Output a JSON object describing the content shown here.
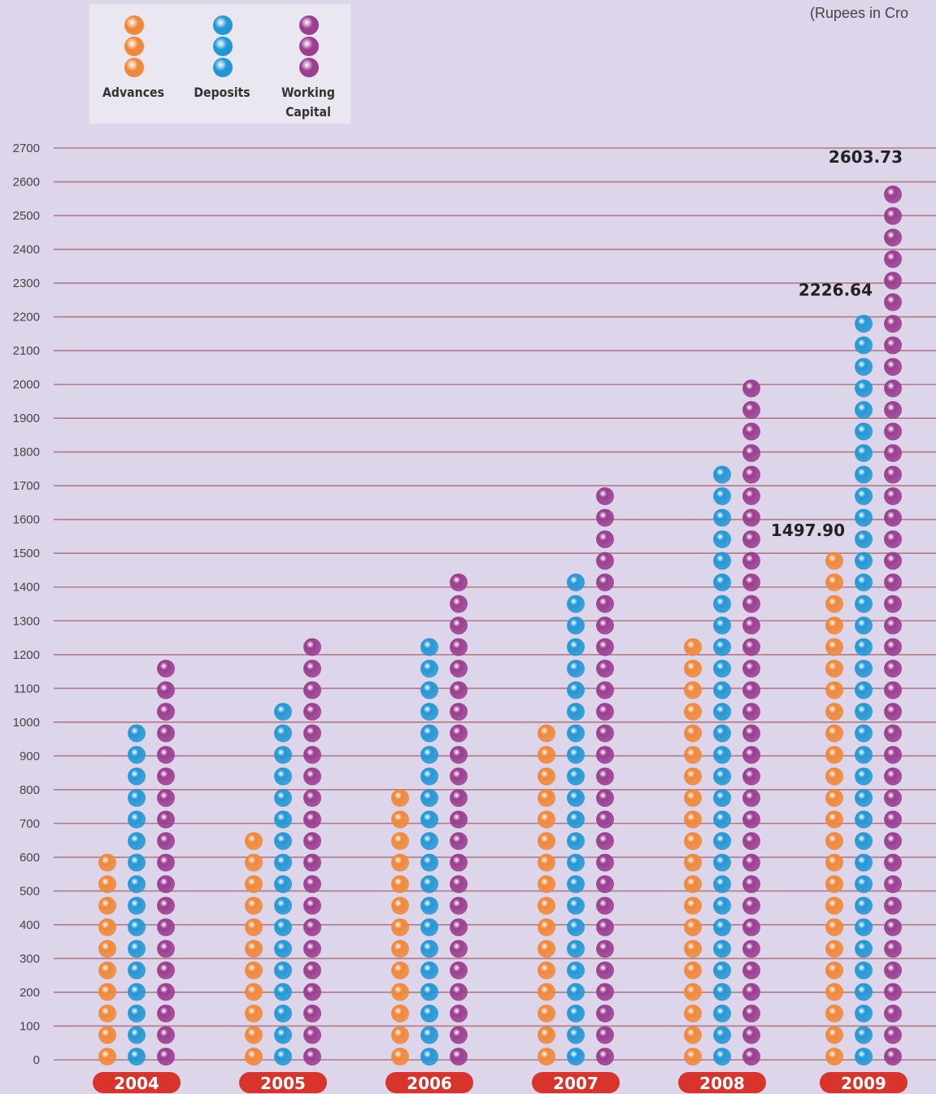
{
  "unit_note": "(Rupees in Cro",
  "legend": {
    "items": [
      {
        "label": "Advances",
        "color": "#f0883a"
      },
      {
        "label": "Deposits",
        "color": "#2397d5"
      },
      {
        "label": "Working Capital",
        "label_line1": "Working",
        "label_line2": "Capital",
        "color": "#9b3d90"
      }
    ]
  },
  "colors": {
    "background": "#ddd5e9",
    "gridline": "#b07a86",
    "year_badge": "#d9342b",
    "advances": "#f0883a",
    "deposits": "#2397d5",
    "working_capital": "#9b3d90"
  },
  "chart_data": {
    "type": "bar",
    "categories": [
      "2004",
      "2005",
      "2006",
      "2007",
      "2008",
      "2009"
    ],
    "series": [
      {
        "name": "Advances",
        "values": [
          620,
          680,
          810,
          995,
          1260,
          1497.9
        ]
      },
      {
        "name": "Deposits",
        "values": [
          965,
          1070,
          1230,
          1450,
          1775,
          2226.64
        ]
      },
      {
        "name": "Working Capital",
        "values": [
          1195,
          1255,
          1450,
          1710,
          1985,
          2603.73
        ]
      }
    ],
    "data_labels": [
      {
        "series": "Advances",
        "category": "2009",
        "text": "1497.90"
      },
      {
        "series": "Deposits",
        "category": "2009",
        "text": "2226.64"
      },
      {
        "series": "Working Capital",
        "category": "2009",
        "text": "2603.73"
      }
    ],
    "y_ticks": [
      "0",
      "100",
      "200",
      "300",
      "400",
      "500",
      "600",
      "700",
      "800",
      "900",
      "1000",
      "1100",
      "1200",
      "1300",
      "1400",
      "1500",
      "1600",
      "1700",
      "1800",
      "1900",
      "2000",
      "2100",
      "2200",
      "2300",
      "2400",
      "2500",
      "2600",
      "2700"
    ],
    "ylim": [
      0,
      2700
    ],
    "grid": true,
    "legend_position": "top-left"
  }
}
